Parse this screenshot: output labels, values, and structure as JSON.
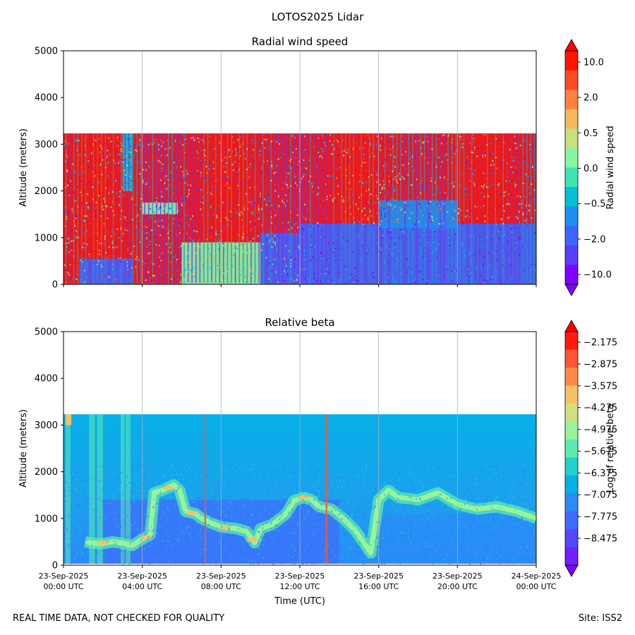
{
  "figure": {
    "title": "LOTOS2025 Lidar",
    "footer_left": "REAL TIME DATA, NOT CHECKED FOR QUALITY",
    "footer_right": "Site: ISS2"
  },
  "chart_data": [
    {
      "type": "heatmap",
      "title": "Radial wind speed",
      "ylabel": "Altitude (meters)",
      "xlabel": "",
      "ylim": [
        0,
        5000
      ],
      "yticks": [
        0,
        1000,
        2000,
        3000,
        4000,
        5000
      ],
      "x_range_hours": [
        0,
        24
      ],
      "x_major_ticks_hours": [
        0,
        4,
        8,
        12,
        16,
        20,
        24
      ],
      "grid": "vertical at x ticks",
      "data_top_altitude": 3230,
      "colorbar": {
        "label": "Radial wind speed",
        "tick_labels": [
          "10.0",
          "2.0",
          "0.5",
          "0.0",
          "−0.5",
          "−2.0",
          "−10.0"
        ],
        "extend": "both",
        "colors": [
          "#ff1400",
          "#ff4a26",
          "#ff8040",
          "#f5b85e",
          "#c9e07c",
          "#86f6a0",
          "#3ee4b4",
          "#04c1d6",
          "#1e8ef0",
          "#3c66fc",
          "#5a3cfc",
          "#8000ff"
        ],
        "over_color": "#ff0000",
        "under_color": "#8000ff"
      },
      "regions": [
        {
          "desc": "general red upper layer",
          "t0": 0,
          "t1": 24,
          "z0": 0,
          "z1": 3230,
          "color": "#ff1400"
        },
        {
          "desc": "blue lower region afternoon",
          "t0": 12,
          "t1": 24,
          "z0": 0,
          "z1": 1300,
          "color": "#3c66fc"
        },
        {
          "desc": "teal band afternoon",
          "t0": 16,
          "t1": 20,
          "z0": 1200,
          "z1": 1800,
          "color": "#1e8ef0"
        },
        {
          "desc": "green low mixed layer morning",
          "t0": 6,
          "t1": 10,
          "z0": 0,
          "z1": 900,
          "color": "#86f6a0"
        },
        {
          "desc": "blue low region early",
          "t0": 0.8,
          "t1": 3.5,
          "z0": 0,
          "z1": 550,
          "color": "#3c66fc"
        },
        {
          "desc": "cyan plume early",
          "t0": 3,
          "t1": 3.5,
          "z0": 2000,
          "z1": 3230,
          "color": "#04c1d6"
        },
        {
          "desc": "green layer near 1600m",
          "t0": 4,
          "t1": 5.8,
          "z0": 1500,
          "z1": 1750,
          "color": "#86f6a0"
        },
        {
          "desc": "blue mid-day region",
          "t0": 10,
          "t1": 12,
          "z0": 0,
          "z1": 1100,
          "color": "#3c66fc"
        }
      ]
    },
    {
      "type": "heatmap",
      "title": "Relative beta",
      "ylabel": "Altitude (meters)",
      "xlabel": "Time (UTC)",
      "ylim": [
        0,
        5000
      ],
      "yticks": [
        0,
        1000,
        2000,
        3000,
        4000,
        5000
      ],
      "x_range_hours": [
        0,
        24
      ],
      "x_major_ticks_hours": [
        0,
        4,
        8,
        12,
        16,
        20,
        24
      ],
      "x_tick_labels": [
        [
          "23-Sep-2025",
          "00:00 UTC"
        ],
        [
          "23-Sep-2025",
          "04:00 UTC"
        ],
        [
          "23-Sep-2025",
          "08:00 UTC"
        ],
        [
          "23-Sep-2025",
          "12:00 UTC"
        ],
        [
          "23-Sep-2025",
          "16:00 UTC"
        ],
        [
          "23-Sep-2025",
          "20:00 UTC"
        ],
        [
          "24-Sep-2025",
          "00:00 UTC"
        ]
      ],
      "grid": "vertical at x ticks",
      "data_top_altitude": 3230,
      "vertical_red_lines_hours": [
        7.2,
        13.35
      ],
      "colorbar": {
        "label": "Log of relative beta",
        "tick_labels": [
          "−2.175",
          "−2.875",
          "−3.575",
          "−4.275",
          "−4.975",
          "−5.675",
          "−6.375",
          "−7.075",
          "−7.775",
          "−8.475"
        ],
        "extend": "both",
        "colors": [
          "#ff1a0d",
          "#ff5530",
          "#ff8a48",
          "#f8c066",
          "#d0e080",
          "#98f49a",
          "#5cecb0",
          "#22d0cc",
          "#06b0e8",
          "#2a8cf6",
          "#3e6cfc",
          "#5448fc",
          "#7020ff"
        ],
        "over_color": "#ff0000",
        "under_color": "#8000ff"
      },
      "aerosol_layer_path": [
        [
          1.1,
          500
        ],
        [
          1.5,
          470
        ],
        [
          2.0,
          460
        ],
        [
          2.5,
          500
        ],
        [
          3.0,
          470
        ],
        [
          3.5,
          420
        ],
        [
          4.0,
          560
        ],
        [
          4.4,
          650
        ],
        [
          4.6,
          1550
        ],
        [
          5.0,
          1600
        ],
        [
          5.6,
          1720
        ],
        [
          5.9,
          1600
        ],
        [
          6.2,
          1150
        ],
        [
          6.7,
          1100
        ],
        [
          7.0,
          1000
        ],
        [
          7.5,
          900
        ],
        [
          8.0,
          820
        ],
        [
          8.8,
          780
        ],
        [
          9.3,
          720
        ],
        [
          9.7,
          480
        ],
        [
          10.0,
          780
        ],
        [
          10.6,
          870
        ],
        [
          11.3,
          1100
        ],
        [
          11.7,
          1380
        ],
        [
          12.2,
          1450
        ],
        [
          12.6,
          1400
        ],
        [
          13.0,
          1250
        ],
        [
          13.6,
          1200
        ],
        [
          14.2,
          1000
        ],
        [
          14.8,
          750
        ],
        [
          15.3,
          450
        ],
        [
          15.6,
          260
        ],
        [
          16.0,
          1400
        ],
        [
          16.5,
          1600
        ],
        [
          17.0,
          1450
        ],
        [
          18.0,
          1400
        ],
        [
          19.0,
          1550
        ],
        [
          20.0,
          1300
        ],
        [
          21.0,
          1200
        ],
        [
          22.0,
          1250
        ],
        [
          23.0,
          1150
        ],
        [
          24.0,
          1000
        ]
      ]
    }
  ]
}
